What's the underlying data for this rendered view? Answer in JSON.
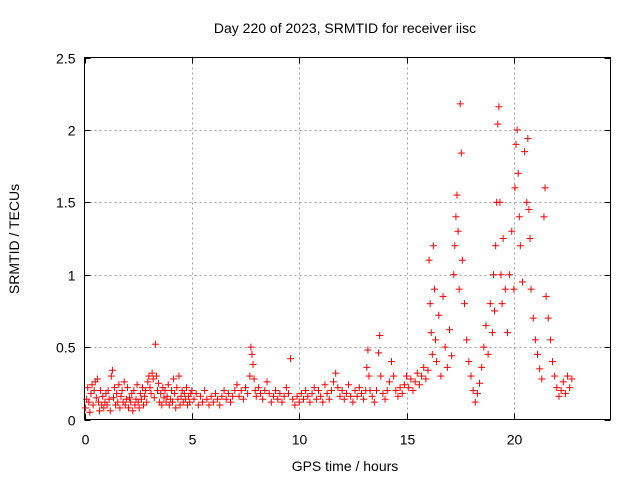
{
  "chart_data": {
    "type": "scatter",
    "title": "Day 220 of 2023, SRMTID for receiver iisc",
    "xlabel": "GPS time / hours",
    "ylabel": "SRMTID / TECUs",
    "xlim": [
      0,
      24.5
    ],
    "ylim": [
      0,
      2.5
    ],
    "xticks": [
      0,
      5,
      10,
      15,
      20
    ],
    "yticks": [
      0,
      0.5,
      1,
      1.5,
      2,
      2.5
    ],
    "xtick_labels": [
      "0",
      "5",
      "10",
      "15",
      "20"
    ],
    "ytick_labels": [
      "0",
      "0.5",
      "1",
      "1.5",
      "2",
      "2.5"
    ],
    "grid": true,
    "marker": "+",
    "color": "#ff0000",
    "series": [
      {
        "name": "SRMTID",
        "points": [
          [
            0.05,
            0.08
          ],
          [
            0.1,
            0.14
          ],
          [
            0.15,
            0.22
          ],
          [
            0.2,
            0.12
          ],
          [
            0.25,
            0.05
          ],
          [
            0.3,
            0.18
          ],
          [
            0.35,
            0.24
          ],
          [
            0.4,
            0.1
          ],
          [
            0.45,
            0.2
          ],
          [
            0.5,
            0.26
          ],
          [
            0.55,
            0.15
          ],
          [
            0.6,
            0.28
          ],
          [
            0.65,
            0.12
          ],
          [
            0.7,
            0.06
          ],
          [
            0.75,
            0.2
          ],
          [
            0.8,
            0.1
          ],
          [
            0.85,
            0.16
          ],
          [
            0.9,
            0.08
          ],
          [
            0.95,
            0.12
          ],
          [
            1.0,
            0.18
          ],
          [
            1.05,
            0.1
          ],
          [
            1.1,
            0.2
          ],
          [
            1.15,
            0.14
          ],
          [
            1.2,
            0.06
          ],
          [
            1.25,
            0.3
          ],
          [
            1.3,
            0.34
          ],
          [
            1.35,
            0.15
          ],
          [
            1.4,
            0.22
          ],
          [
            1.45,
            0.1
          ],
          [
            1.5,
            0.18
          ],
          [
            1.55,
            0.12
          ],
          [
            1.6,
            0.24
          ],
          [
            1.65,
            0.08
          ],
          [
            1.7,
            0.16
          ],
          [
            1.75,
            0.2
          ],
          [
            1.8,
            0.12
          ],
          [
            1.85,
            0.26
          ],
          [
            1.9,
            0.1
          ],
          [
            1.95,
            0.14
          ],
          [
            2.0,
            0.22
          ],
          [
            2.05,
            0.08
          ],
          [
            2.1,
            0.15
          ],
          [
            2.15,
            0.12
          ],
          [
            2.2,
            0.18
          ],
          [
            2.25,
            0.06
          ],
          [
            2.3,
            0.2
          ],
          [
            2.35,
            0.1
          ],
          [
            2.4,
            0.14
          ],
          [
            2.45,
            0.24
          ],
          [
            2.5,
            0.12
          ],
          [
            2.55,
            0.08
          ],
          [
            2.6,
            0.18
          ],
          [
            2.65,
            0.14
          ],
          [
            2.7,
            0.22
          ],
          [
            2.75,
            0.1
          ],
          [
            2.8,
            0.16
          ],
          [
            2.85,
            0.2
          ],
          [
            2.9,
            0.12
          ],
          [
            2.95,
            0.26
          ],
          [
            3.0,
            0.3
          ],
          [
            3.05,
            0.22
          ],
          [
            3.1,
            0.18
          ],
          [
            3.15,
            0.32
          ],
          [
            3.2,
            0.28
          ],
          [
            3.25,
            0.15
          ],
          [
            3.3,
            0.52
          ],
          [
            3.35,
            0.3
          ],
          [
            3.4,
            0.2
          ],
          [
            3.45,
            0.25
          ],
          [
            3.5,
            0.12
          ],
          [
            3.55,
            0.18
          ],
          [
            3.6,
            0.1
          ],
          [
            3.65,
            0.22
          ],
          [
            3.7,
            0.15
          ],
          [
            3.75,
            0.2
          ],
          [
            3.8,
            0.12
          ],
          [
            3.85,
            0.16
          ],
          [
            3.9,
            0.24
          ],
          [
            3.95,
            0.1
          ],
          [
            4.0,
            0.14
          ],
          [
            4.05,
            0.2
          ],
          [
            4.1,
            0.12
          ],
          [
            4.15,
            0.28
          ],
          [
            4.2,
            0.18
          ],
          [
            4.25,
            0.08
          ],
          [
            4.3,
            0.22
          ],
          [
            4.35,
            0.14
          ],
          [
            4.4,
            0.3
          ],
          [
            4.45,
            0.1
          ],
          [
            4.5,
            0.16
          ],
          [
            4.55,
            0.2
          ],
          [
            4.6,
            0.12
          ],
          [
            4.65,
            0.18
          ],
          [
            4.7,
            0.14
          ],
          [
            4.75,
            0.22
          ],
          [
            4.8,
            0.1
          ],
          [
            4.85,
            0.16
          ],
          [
            4.9,
            0.12
          ],
          [
            4.95,
            0.18
          ],
          [
            5.0,
            0.2
          ],
          [
            5.1,
            0.14
          ],
          [
            5.2,
            0.18
          ],
          [
            5.3,
            0.1
          ],
          [
            5.4,
            0.16
          ],
          [
            5.5,
            0.12
          ],
          [
            5.6,
            0.2
          ],
          [
            5.7,
            0.14
          ],
          [
            5.8,
            0.1
          ],
          [
            5.9,
            0.16
          ],
          [
            6.0,
            0.12
          ],
          [
            6.1,
            0.18
          ],
          [
            6.2,
            0.14
          ],
          [
            6.3,
            0.1
          ],
          [
            6.4,
            0.16
          ],
          [
            6.5,
            0.2
          ],
          [
            6.6,
            0.14
          ],
          [
            6.7,
            0.18
          ],
          [
            6.8,
            0.12
          ],
          [
            6.9,
            0.16
          ],
          [
            7.0,
            0.2
          ],
          [
            7.1,
            0.24
          ],
          [
            7.2,
            0.16
          ],
          [
            7.3,
            0.2
          ],
          [
            7.4,
            0.14
          ],
          [
            7.5,
            0.22
          ],
          [
            7.6,
            0.18
          ],
          [
            7.7,
            0.3
          ],
          [
            7.75,
            0.5
          ],
          [
            7.8,
            0.45
          ],
          [
            7.85,
            0.38
          ],
          [
            7.9,
            0.28
          ],
          [
            7.95,
            0.2
          ],
          [
            8.0,
            0.16
          ],
          [
            8.1,
            0.22
          ],
          [
            8.2,
            0.18
          ],
          [
            8.3,
            0.14
          ],
          [
            8.4,
            0.2
          ],
          [
            8.5,
            0.26
          ],
          [
            8.6,
            0.18
          ],
          [
            8.7,
            0.12
          ],
          [
            8.8,
            0.16
          ],
          [
            8.9,
            0.2
          ],
          [
            9.0,
            0.14
          ],
          [
            9.1,
            0.18
          ],
          [
            9.2,
            0.12
          ],
          [
            9.3,
            0.16
          ],
          [
            9.4,
            0.22
          ],
          [
            9.5,
            0.18
          ],
          [
            9.6,
            0.42
          ],
          [
            9.7,
            0.14
          ],
          [
            9.8,
            0.1
          ],
          [
            9.9,
            0.16
          ],
          [
            10.0,
            0.12
          ],
          [
            10.1,
            0.18
          ],
          [
            10.2,
            0.14
          ],
          [
            10.3,
            0.2
          ],
          [
            10.4,
            0.16
          ],
          [
            10.5,
            0.12
          ],
          [
            10.6,
            0.18
          ],
          [
            10.7,
            0.22
          ],
          [
            10.8,
            0.14
          ],
          [
            10.9,
            0.2
          ],
          [
            11.0,
            0.16
          ],
          [
            11.1,
            0.12
          ],
          [
            11.2,
            0.24
          ],
          [
            11.3,
            0.18
          ],
          [
            11.4,
            0.14
          ],
          [
            11.5,
            0.2
          ],
          [
            11.6,
            0.26
          ],
          [
            11.7,
            0.32
          ],
          [
            11.8,
            0.22
          ],
          [
            11.9,
            0.16
          ],
          [
            12.0,
            0.2
          ],
          [
            12.1,
            0.14
          ],
          [
            12.2,
            0.18
          ],
          [
            12.3,
            0.24
          ],
          [
            12.4,
            0.16
          ],
          [
            12.5,
            0.12
          ],
          [
            12.6,
            0.2
          ],
          [
            12.7,
            0.16
          ],
          [
            12.8,
            0.22
          ],
          [
            12.9,
            0.18
          ],
          [
            13.0,
            0.14
          ],
          [
            13.1,
            0.2
          ],
          [
            13.15,
            0.36
          ],
          [
            13.2,
            0.48
          ],
          [
            13.25,
            0.3
          ],
          [
            13.3,
            0.2
          ],
          [
            13.4,
            0.16
          ],
          [
            13.5,
            0.12
          ],
          [
            13.6,
            0.2
          ],
          [
            13.7,
            0.46
          ],
          [
            13.75,
            0.58
          ],
          [
            13.8,
            0.3
          ],
          [
            13.9,
            0.18
          ],
          [
            14.0,
            0.14
          ],
          [
            14.1,
            0.2
          ],
          [
            14.2,
            0.26
          ],
          [
            14.3,
            0.4
          ],
          [
            14.4,
            0.3
          ],
          [
            14.5,
            0.2
          ],
          [
            14.6,
            0.16
          ],
          [
            14.7,
            0.22
          ],
          [
            14.8,
            0.18
          ],
          [
            14.9,
            0.24
          ],
          [
            15.0,
            0.3
          ],
          [
            15.1,
            0.22
          ],
          [
            15.2,
            0.28
          ],
          [
            15.3,
            0.2
          ],
          [
            15.4,
            0.26
          ],
          [
            15.5,
            0.32
          ],
          [
            15.6,
            0.24
          ],
          [
            15.7,
            0.3
          ],
          [
            15.8,
            0.36
          ],
          [
            15.9,
            0.28
          ],
          [
            16.0,
            0.34
          ],
          [
            16.05,
            1.1
          ],
          [
            16.1,
            0.8
          ],
          [
            16.15,
            0.6
          ],
          [
            16.2,
            0.45
          ],
          [
            16.25,
            1.2
          ],
          [
            16.3,
            0.9
          ],
          [
            16.35,
            0.55
          ],
          [
            16.4,
            0.4
          ],
          [
            16.5,
            0.72
          ],
          [
            16.6,
            0.3
          ],
          [
            16.7,
            0.85
          ],
          [
            16.8,
            0.5
          ],
          [
            16.9,
            0.36
          ],
          [
            17.0,
            0.62
          ],
          [
            17.1,
            0.44
          ],
          [
            17.2,
            1.0
          ],
          [
            17.25,
            1.2
          ],
          [
            17.3,
            1.4
          ],
          [
            17.35,
            1.55
          ],
          [
            17.4,
            1.3
          ],
          [
            17.45,
            0.9
          ],
          [
            17.5,
            2.18
          ],
          [
            17.55,
            1.84
          ],
          [
            17.6,
            1.1
          ],
          [
            17.7,
            0.8
          ],
          [
            17.8,
            0.55
          ],
          [
            17.9,
            0.4
          ],
          [
            18.0,
            0.3
          ],
          [
            18.1,
            0.2
          ],
          [
            18.2,
            0.12
          ],
          [
            18.3,
            0.18
          ],
          [
            18.4,
            0.25
          ],
          [
            18.5,
            0.36
          ],
          [
            18.6,
            0.5
          ],
          [
            18.7,
            0.65
          ],
          [
            18.8,
            0.45
          ],
          [
            18.9,
            0.8
          ],
          [
            19.0,
            0.6
          ],
          [
            19.05,
            1.0
          ],
          [
            19.1,
            0.75
          ],
          [
            19.15,
            1.2
          ],
          [
            19.2,
            1.5
          ],
          [
            19.25,
            2.04
          ],
          [
            19.3,
            2.16
          ],
          [
            19.35,
            1.5
          ],
          [
            19.4,
            1.0
          ],
          [
            19.45,
            0.8
          ],
          [
            19.5,
            1.25
          ],
          [
            19.6,
            0.9
          ],
          [
            19.7,
            0.6
          ],
          [
            19.8,
            1.0
          ],
          [
            19.9,
            1.3
          ],
          [
            20.0,
            0.9
          ],
          [
            20.05,
            1.6
          ],
          [
            20.1,
            1.9
          ],
          [
            20.15,
            2.0
          ],
          [
            20.2,
            1.7
          ],
          [
            20.25,
            1.4
          ],
          [
            20.3,
            1.2
          ],
          [
            20.4,
            0.95
          ],
          [
            20.5,
            1.85
          ],
          [
            20.6,
            1.5
          ],
          [
            20.65,
            1.94
          ],
          [
            20.7,
            1.45
          ],
          [
            20.75,
            1.25
          ],
          [
            20.8,
            0.9
          ],
          [
            20.9,
            0.7
          ],
          [
            21.0,
            0.55
          ],
          [
            21.1,
            0.45
          ],
          [
            21.2,
            0.35
          ],
          [
            21.3,
            0.28
          ],
          [
            21.4,
            1.4
          ],
          [
            21.45,
            1.6
          ],
          [
            21.5,
            0.85
          ],
          [
            21.6,
            0.7
          ],
          [
            21.7,
            0.55
          ],
          [
            21.8,
            0.4
          ],
          [
            21.9,
            0.3
          ],
          [
            22.0,
            0.22
          ],
          [
            22.1,
            0.16
          ],
          [
            22.2,
            0.2
          ],
          [
            22.3,
            0.26
          ],
          [
            22.4,
            0.18
          ],
          [
            22.5,
            0.3
          ],
          [
            22.6,
            0.22
          ],
          [
            22.7,
            0.28
          ]
        ]
      }
    ]
  }
}
